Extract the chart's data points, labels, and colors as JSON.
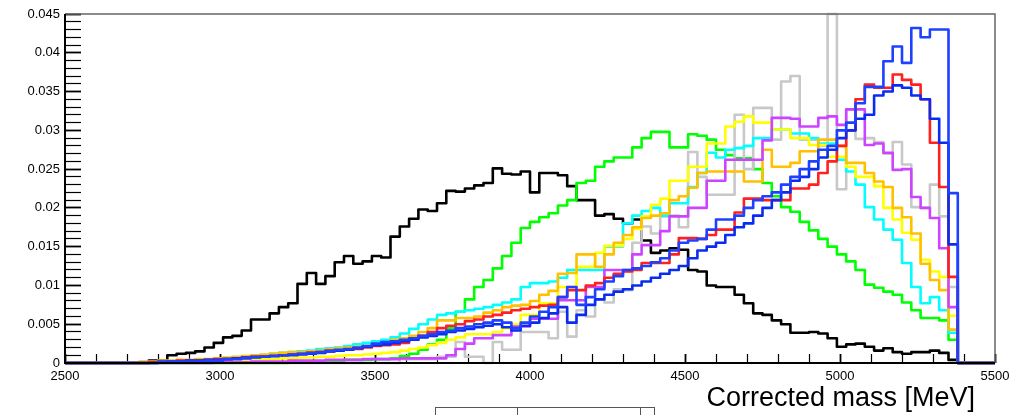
{
  "chart_data": {
    "type": "histogram",
    "xlabel": "Corrected mass [MeV]",
    "bins": [
      2500,
      2530,
      2560,
      2590,
      2620,
      2650,
      2680,
      2710,
      2740,
      2770,
      2800,
      2830,
      2860,
      2890,
      2920,
      2950,
      2980,
      3010,
      3040,
      3070,
      3100,
      3130,
      3160,
      3190,
      3220,
      3250,
      3280,
      3310,
      3340,
      3370,
      3400,
      3430,
      3460,
      3490,
      3520,
      3550,
      3580,
      3610,
      3640,
      3670,
      3700,
      3730,
      3760,
      3790,
      3820,
      3850,
      3880,
      3910,
      3940,
      3970,
      4000,
      4030,
      4060,
      4090,
      4120,
      4150,
      4180,
      4210,
      4240,
      4270,
      4300,
      4330,
      4360,
      4390,
      4420,
      4450,
      4480,
      4510,
      4540,
      4570,
      4600,
      4630,
      4660,
      4690,
      4720,
      4750,
      4780,
      4810,
      4840,
      4870,
      4900,
      4930,
      4960,
      4990,
      5020,
      5050,
      5080,
      5110,
      5140,
      5170,
      5200,
      5230,
      5260,
      5290,
      5320,
      5350,
      5380,
      5410,
      5440,
      5470,
      5500
    ],
    "series": [
      {
        "color": "#1e40ff",
        "values": [
          0,
          0,
          0,
          0,
          0,
          0,
          0,
          0,
          0,
          0,
          0.0002,
          0.0002,
          0.0002,
          0.0002,
          0.0002,
          0.0003,
          0.0003,
          0.0005,
          0.0005,
          0.0006,
          0.0008,
          0.0008,
          0.0009,
          0.001,
          0.0011,
          0.0012,
          0.0013,
          0.0014,
          0.0016,
          0.0017,
          0.0018,
          0.002,
          0.0022,
          0.0025,
          0.0027,
          0.0028,
          0.003,
          0.0032,
          0.0035,
          0.0037,
          0.004,
          0.0042,
          0.0045,
          0.0047,
          0.005,
          0.0052,
          0.0055,
          0.0052,
          0.0045,
          0.0052,
          0.006,
          0.0066,
          0.0072,
          0.0085,
          0.0098,
          0.0075,
          0.0085,
          0.0095,
          0.0105,
          0.0112,
          0.012,
          0.0122,
          0.0125,
          0.013,
          0.0135,
          0.0145,
          0.0155,
          0.0158,
          0.016,
          0.0172,
          0.0185,
          0.0185,
          0.019,
          0.02,
          0.021,
          0.0215,
          0.022,
          0.023,
          0.024,
          0.025,
          0.026,
          0.0275,
          0.028,
          0.03,
          0.031,
          0.0335,
          0.0356,
          0.0356,
          0.0389,
          0.0408,
          0.0387,
          0.0432,
          0.042,
          0.043,
          0.043,
          0.0219,
          0,
          0,
          0,
          0
        ]
      },
      {
        "color": "#0a2cf0",
        "values": [
          0,
          0,
          0,
          0,
          0,
          0,
          0,
          0,
          0,
          0,
          0.0001,
          0.0002,
          0.0002,
          0.0003,
          0.0003,
          0.0004,
          0.0004,
          0.0005,
          0.0006,
          0.0007,
          0.0007,
          0.0008,
          0.0009,
          0.001,
          0.001,
          0.0011,
          0.0012,
          0.0013,
          0.0015,
          0.0016,
          0.0017,
          0.0019,
          0.0021,
          0.0023,
          0.0024,
          0.0026,
          0.0028,
          0.003,
          0.0033,
          0.0035,
          0.0037,
          0.004,
          0.0042,
          0.0044,
          0.0046,
          0.0048,
          0.005,
          0.0046,
          0.0042,
          0.0048,
          0.0052,
          0.0058,
          0.0064,
          0.0072,
          0.0052,
          0.0062,
          0.0075,
          0.0082,
          0.0088,
          0.0092,
          0.0095,
          0.01,
          0.0105,
          0.011,
          0.0115,
          0.012,
          0.0125,
          0.0135,
          0.0145,
          0.015,
          0.0155,
          0.0165,
          0.0175,
          0.018,
          0.019,
          0.02,
          0.021,
          0.022,
          0.0235,
          0.024,
          0.025,
          0.0265,
          0.0275,
          0.029,
          0.03,
          0.0315,
          0.032,
          0.0345,
          0.035,
          0.0358,
          0.0355,
          0.0345,
          0.034,
          0.0315,
          0.0284,
          0.0153,
          0,
          0,
          0,
          0
        ]
      },
      {
        "color": "#ff2020",
        "values": [
          0,
          0,
          0,
          0,
          0,
          0,
          0,
          0,
          0,
          0.0001,
          0.0002,
          0.0002,
          0.0003,
          0.0003,
          0.0003,
          0.0004,
          0.0005,
          0.0005,
          0.0006,
          0.0007,
          0.0008,
          0.0008,
          0.0009,
          0.001,
          0.0011,
          0.0012,
          0.0013,
          0.0014,
          0.0015,
          0.0016,
          0.0017,
          0.0018,
          0.002,
          0.0022,
          0.0023,
          0.0024,
          0.0026,
          0.003,
          0.0035,
          0.004,
          0.0045,
          0.0048,
          0.005,
          0.0054,
          0.0056,
          0.006,
          0.0062,
          0.0065,
          0.0068,
          0.007,
          0.0072,
          0.0074,
          0.0075,
          0.0085,
          0.0094,
          0.0094,
          0.01,
          0.0103,
          0.011,
          0.0115,
          0.0118,
          0.012,
          0.0129,
          0.0129,
          0.0129,
          0.014,
          0.0161,
          0.0161,
          0.016,
          0.0165,
          0.0172,
          0.0172,
          0.0194,
          0.0212,
          0.0212,
          0.021,
          0.021,
          0.021,
          0.0225,
          0.0225,
          0.023,
          0.0245,
          0.026,
          0.028,
          0.03,
          0.034,
          0.0359,
          0.0355,
          0.0355,
          0.0372,
          0.0365,
          0.0359,
          0.034,
          0.0284,
          0.0227,
          0.0111,
          0,
          0,
          0,
          0
        ]
      },
      {
        "color": "#cc44ff",
        "values": [
          0,
          0,
          0,
          0,
          0,
          0,
          0,
          0,
          0,
          0,
          0,
          0,
          0,
          0,
          0,
          0,
          0.0001,
          0.0001,
          0.0001,
          0.0001,
          0.0002,
          0.0002,
          0.0002,
          0.0002,
          0.0003,
          0.0003,
          0.0003,
          0.0003,
          0.0004,
          0.0004,
          0.0004,
          0.0004,
          0.0005,
          0.0005,
          0.0005,
          0.0005,
          0.0006,
          0.0006,
          0.0006,
          0.0006,
          0.0006,
          0.001,
          0.0018,
          0.0025,
          0.0032,
          0.0032,
          0.0036,
          0.0036,
          0.0047,
          0.0047,
          0.0057,
          0.0057,
          0.0057,
          0.0081,
          0.0081,
          0.0081,
          0.0098,
          0.0098,
          0.012,
          0.012,
          0.012,
          0.014,
          0.0152,
          0.0152,
          0.017,
          0.0189,
          0.0189,
          0.02,
          0.02,
          0.0235,
          0.0235,
          0.0262,
          0.0262,
          0.0262,
          0.0262,
          0.0287,
          0.0316,
          0.0316,
          0.0315,
          0.0305,
          0.0305,
          0.0316,
          0.0318,
          0.0307,
          0.0327,
          0.0327,
          0.0281,
          0.0283,
          0.0271,
          0.0249,
          0.025,
          0.0214,
          0.02,
          0.0187,
          0.0148,
          0.0072,
          0,
          0,
          0,
          0
        ]
      },
      {
        "color": "#ffc000",
        "values": [
          0,
          0,
          0,
          0,
          0,
          0,
          0,
          0,
          0.0002,
          0.0002,
          0.0003,
          0.0003,
          0.0004,
          0.0004,
          0.0005,
          0.0005,
          0.0006,
          0.0007,
          0.0008,
          0.0009,
          0.001,
          0.0011,
          0.0012,
          0.0013,
          0.0014,
          0.0014,
          0.0015,
          0.0016,
          0.0018,
          0.0019,
          0.002,
          0.0021,
          0.0022,
          0.0023,
          0.0026,
          0.003,
          0.0032,
          0.0035,
          0.004,
          0.0045,
          0.0055,
          0.0055,
          0.0058,
          0.0058,
          0.006,
          0.0065,
          0.0068,
          0.0072,
          0.0074,
          0.0075,
          0.008,
          0.0088,
          0.0093,
          0.0115,
          0.0116,
          0.014,
          0.014,
          0.0124,
          0.014,
          0.0155,
          0.0165,
          0.0175,
          0.0187,
          0.019,
          0.0193,
          0.021,
          0.0215,
          0.0226,
          0.0245,
          0.0247,
          0.0247,
          0.0247,
          0.0247,
          0.0234,
          0.0234,
          0.0275,
          0.0253,
          0.0253,
          0.0258,
          0.0273,
          0.0273,
          0.0288,
          0.0288,
          0.028,
          0.0258,
          0.0258,
          0.0245,
          0.0234,
          0.0227,
          0.02,
          0.0188,
          0.0167,
          0.0128,
          0.0107,
          0.0094,
          0.0043,
          0,
          0,
          0,
          0
        ]
      },
      {
        "color": "#ffff00",
        "values": [
          0,
          0,
          0,
          0,
          0,
          0,
          0,
          0,
          0,
          0.0001,
          0.0001,
          0.0001,
          0.0002,
          0.0002,
          0.0002,
          0.0003,
          0.0003,
          0.0003,
          0.0004,
          0.0004,
          0.0004,
          0.0005,
          0.0005,
          0.0006,
          0.0006,
          0.0007,
          0.0007,
          0.0008,
          0.0008,
          0.0009,
          0.001,
          0.001,
          0.0011,
          0.0012,
          0.0013,
          0.0014,
          0.0016,
          0.0018,
          0.002,
          0.0023,
          0.0026,
          0.003,
          0.0033,
          0.0037,
          0.0037,
          0.0037,
          0.004,
          0.0045,
          0.005,
          0.0062,
          0.0062,
          0.0077,
          0.0077,
          0.0098,
          0.0098,
          0.0124,
          0.0124,
          0.0142,
          0.0151,
          0.0151,
          0.016,
          0.0173,
          0.0189,
          0.0204,
          0.0212,
          0.0235,
          0.0235,
          0.0253,
          0.0253,
          0.0283,
          0.0283,
          0.0305,
          0.0311,
          0.0318,
          0.031,
          0.031,
          0.0301,
          0.0301,
          0.029,
          0.029,
          0.0281,
          0.0281,
          0.0266,
          0.0266,
          0.0253,
          0.024,
          0.024,
          0.0228,
          0.02,
          0.0185,
          0.0168,
          0.0159,
          0.0133,
          0.0118,
          0.0111,
          0.0061,
          0,
          0,
          0,
          0
        ]
      },
      {
        "color": "#00ffff",
        "values": [
          0,
          0,
          0,
          0,
          0,
          0,
          0,
          0,
          0,
          0.0001,
          0.0002,
          0.0002,
          0.0003,
          0.0003,
          0.0004,
          0.0004,
          0.0005,
          0.0006,
          0.0007,
          0.0008,
          0.0009,
          0.001,
          0.0012,
          0.0013,
          0.0014,
          0.0015,
          0.0016,
          0.0018,
          0.0019,
          0.002,
          0.0022,
          0.0024,
          0.0026,
          0.0028,
          0.003,
          0.0033,
          0.0038,
          0.0044,
          0.005,
          0.0056,
          0.0062,
          0.0064,
          0.0066,
          0.0068,
          0.007,
          0.0072,
          0.0075,
          0.0078,
          0.0082,
          0.0098,
          0.0103,
          0.0103,
          0.0105,
          0.011,
          0.012,
          0.012,
          0.012,
          0.012,
          0.015,
          0.015,
          0.018,
          0.019,
          0.0196,
          0.02,
          0.019,
          0.0206,
          0.0206,
          0.0227,
          0.0245,
          0.0271,
          0.0265,
          0.0275,
          0.0277,
          0.028,
          0.029,
          0.029,
          0.0301,
          0.0301,
          0.0296,
          0.0296,
          0.029,
          0.0283,
          0.0283,
          0.0262,
          0.0247,
          0.023,
          0.0201,
          0.0185,
          0.0172,
          0.0159,
          0.0129,
          0.0098,
          0.0077,
          0.0085,
          0.0068,
          0.0039,
          0,
          0,
          0,
          0
        ]
      },
      {
        "color": "#c8c8c8",
        "values": [
          0,
          0,
          0,
          0,
          0,
          0,
          0,
          0,
          0,
          0,
          0,
          0,
          0,
          0,
          0,
          0,
          0,
          0,
          0,
          0,
          0,
          0,
          0,
          0,
          0,
          0,
          0,
          0,
          0,
          0,
          0,
          0,
          0,
          0,
          0,
          0,
          0.0005,
          0.0005,
          0.0005,
          0.0005,
          0.0008,
          0.0008,
          0.0027,
          0.0008,
          0.0008,
          0,
          0.0027,
          0.0017,
          0.0017,
          0.004,
          0.004,
          0.004,
          0.0032,
          0.0066,
          0.0034,
          0.0068,
          0.006,
          0.0082,
          0.0078,
          0.0095,
          0.0094,
          0.0155,
          0.0176,
          0.0167,
          0.0189,
          0.019,
          0.0175,
          0.0272,
          0.024,
          0.0217,
          0.0217,
          0.0217,
          0.032,
          0.025,
          0.0329,
          0.0329,
          0.0288,
          0.0363,
          0.037,
          0.0288,
          0.0288,
          0.028,
          0.045,
          0.0224,
          0.0327,
          0.0289,
          0.029,
          0.0285,
          0.027,
          0.0285,
          0.0256,
          0.0201,
          0.02,
          0.023,
          0.0189,
          0.0098,
          0,
          0,
          0,
          0
        ]
      },
      {
        "color": "#00ff00",
        "values": [
          0,
          0,
          0,
          0,
          0,
          0,
          0,
          0,
          0,
          0,
          0,
          0,
          0,
          0,
          0,
          0,
          0,
          0,
          0,
          0,
          0,
          0,
          0,
          0,
          0.0001,
          0.0001,
          0.0002,
          0.0002,
          0.0003,
          0.0003,
          0.0004,
          0.0004,
          0.0004,
          0.0005,
          0.0005,
          0.0006,
          0.0009,
          0.0012,
          0.0017,
          0.0024,
          0.003,
          0.0045,
          0.0066,
          0.0082,
          0.0098,
          0.0107,
          0.0122,
          0.0138,
          0.0155,
          0.0174,
          0.0182,
          0.0188,
          0.0193,
          0.0203,
          0.021,
          0.0232,
          0.0235,
          0.0253,
          0.026,
          0.0265,
          0.0265,
          0.0278,
          0.029,
          0.0298,
          0.0298,
          0.0278,
          0.0278,
          0.0295,
          0.0293,
          0.0288,
          0.0275,
          0.0268,
          0.0264,
          0.0264,
          0.025,
          0.0232,
          0.0215,
          0.0201,
          0.0195,
          0.0182,
          0.0171,
          0.016,
          0.015,
          0.014,
          0.0131,
          0.012,
          0.0101,
          0.0097,
          0.0092,
          0.0088,
          0.0078,
          0.0068,
          0.0058,
          0.0058,
          0.0055,
          0.003,
          0,
          0,
          0,
          0
        ]
      },
      {
        "color": "#000000",
        "values": [
          0,
          0,
          0,
          0,
          0,
          0,
          0,
          0,
          0,
          0.0003,
          0.0003,
          0.001,
          0.0012,
          0.0013,
          0.0015,
          0.002,
          0.0026,
          0.0033,
          0.0035,
          0.0042,
          0.0056,
          0.0056,
          0.0064,
          0.0072,
          0.0077,
          0.0102,
          0.0116,
          0.0102,
          0.0112,
          0.013,
          0.0138,
          0.0128,
          0.0131,
          0.0138,
          0.0136,
          0.0163,
          0.0176,
          0.0186,
          0.0198,
          0.0196,
          0.0206,
          0.0222,
          0.0221,
          0.0225,
          0.0229,
          0.0232,
          0.0251,
          0.0244,
          0.0243,
          0.0247,
          0.022,
          0.0245,
          0.0245,
          0.0242,
          0.0228,
          0.021,
          0.021,
          0.019,
          0.0192,
          0.0186,
          0.018,
          0.0185,
          0.0158,
          0.0142,
          0.0145,
          0.0148,
          0.0146,
          0.012,
          0.0118,
          0.01,
          0.0098,
          0.0098,
          0.0088,
          0.0077,
          0.0064,
          0.0062,
          0.0055,
          0.005,
          0.0039,
          0.0039,
          0.004,
          0.0038,
          0.0032,
          0.0021,
          0.0024,
          0.0025,
          0.0021,
          0.0016,
          0.0019,
          0.0014,
          0.0012,
          0.0014,
          0.0014,
          0.0016,
          0.0013,
          0.0004,
          0,
          0,
          0,
          0
        ]
      }
    ],
    "xlim": [
      2500,
      5500
    ],
    "xticks": [
      2500,
      {
        "value": 2600,
        "label": null
      },
      {
        "value": 2700,
        "label": null
      },
      {
        "value": 2800,
        "label": null
      },
      {
        "value": 2900,
        "label": null
      },
      3000,
      {
        "value": 3100,
        "label": null
      },
      {
        "value": 3200,
        "label": null
      },
      {
        "value": 3300,
        "label": null
      },
      {
        "value": 3400,
        "label": null
      },
      3500,
      {
        "value": 3600,
        "label": null
      },
      {
        "value": 3700,
        "label": null
      },
      {
        "value": 3800,
        "label": null
      },
      {
        "value": 3900,
        "label": null
      },
      4000,
      {
        "value": 4100,
        "label": null
      },
      {
        "value": 4200,
        "label": null
      },
      {
        "value": 4300,
        "label": null
      },
      {
        "value": 4400,
        "label": null
      },
      4500,
      {
        "value": 4600,
        "label": null
      },
      {
        "value": 4700,
        "label": null
      },
      {
        "value": 4800,
        "label": null
      },
      {
        "value": 4900,
        "label": null
      },
      5000,
      {
        "value": 5100,
        "label": null
      },
      {
        "value": 5200,
        "label": null
      },
      {
        "value": 5300,
        "label": null
      },
      {
        "value": 5400,
        "label": null
      },
      5500
    ],
    "ylim": [
      0,
      0.045
    ],
    "yticks": [
      0,
      {
        "value": 0.001,
        "label": null
      },
      {
        "value": 0.002,
        "label": null
      },
      {
        "value": 0.003,
        "label": null
      },
      {
        "value": 0.004,
        "label": null
      },
      0.005,
      {
        "value": 0.006,
        "label": null
      },
      {
        "value": 0.007,
        "label": null
      },
      {
        "value": 0.008,
        "label": null
      },
      {
        "value": 0.009,
        "label": null
      },
      0.01,
      {
        "value": 0.011,
        "label": null
      },
      {
        "value": 0.012,
        "label": null
      },
      {
        "value": 0.013,
        "label": null
      },
      {
        "value": 0.014,
        "label": null
      },
      0.015,
      {
        "value": 0.016,
        "label": null
      },
      {
        "value": 0.017,
        "label": null
      },
      {
        "value": 0.018,
        "label": null
      },
      {
        "value": 0.019,
        "label": null
      },
      0.02,
      {
        "value": 0.021,
        "label": null
      },
      {
        "value": 0.022,
        "label": null
      },
      {
        "value": 0.023,
        "label": null
      },
      {
        "value": 0.024,
        "label": null
      },
      0.025,
      {
        "value": 0.026,
        "label": null
      },
      {
        "value": 0.027,
        "label": null
      },
      {
        "value": 0.028,
        "label": null
      },
      {
        "value": 0.029,
        "label": null
      },
      0.03,
      {
        "value": 0.031,
        "label": null
      },
      {
        "value": 0.032,
        "label": null
      },
      {
        "value": 0.033,
        "label": null
      },
      {
        "value": 0.034,
        "label": null
      },
      0.035,
      {
        "value": 0.036,
        "label": null
      },
      {
        "value": 0.037,
        "label": null
      },
      {
        "value": 0.038,
        "label": null
      },
      {
        "value": 0.039,
        "label": null
      },
      0.04,
      {
        "value": 0.041,
        "label": null
      },
      {
        "value": 0.042,
        "label": null
      },
      {
        "value": 0.043,
        "label": null
      },
      {
        "value": 0.044,
        "label": null
      },
      0.045
    ]
  }
}
